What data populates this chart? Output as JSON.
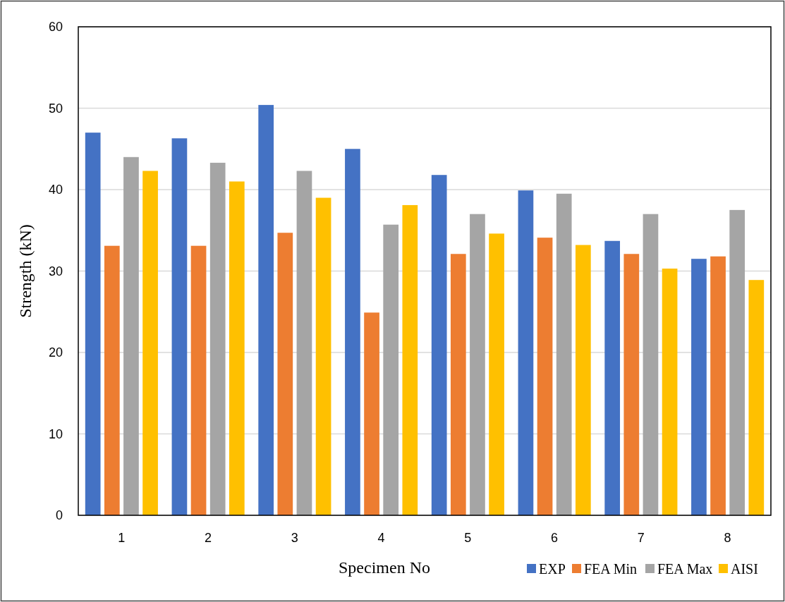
{
  "chart_data": {
    "type": "bar",
    "xlabel": "Specimen No",
    "ylabel": "Strength (kN)",
    "categories": [
      "1",
      "2",
      "3",
      "4",
      "5",
      "6",
      "7",
      "8"
    ],
    "series": [
      {
        "name": "EXP",
        "color": "#4472c4",
        "values": [
          47,
          46.3,
          50.4,
          45,
          41.8,
          39.9,
          33.7,
          31.5
        ]
      },
      {
        "name": "FEA Min",
        "color": "#ed7d31",
        "values": [
          33.1,
          33.1,
          34.7,
          24.9,
          32.1,
          34.1,
          32.1,
          31.8
        ]
      },
      {
        "name": "FEA Max",
        "color": "#a5a5a5",
        "values": [
          44,
          43.3,
          42.3,
          35.7,
          37,
          39.5,
          37,
          37.5
        ]
      },
      {
        "name": "AISI",
        "color": "#ffc000",
        "values": [
          42.3,
          41,
          39,
          38.1,
          34.6,
          33.2,
          30.3,
          28.9
        ]
      }
    ],
    "ylim": [
      0,
      60
    ],
    "yticks": [
      0,
      10,
      20,
      30,
      40,
      50,
      60
    ],
    "grid": "y",
    "legend": "bottom right"
  }
}
